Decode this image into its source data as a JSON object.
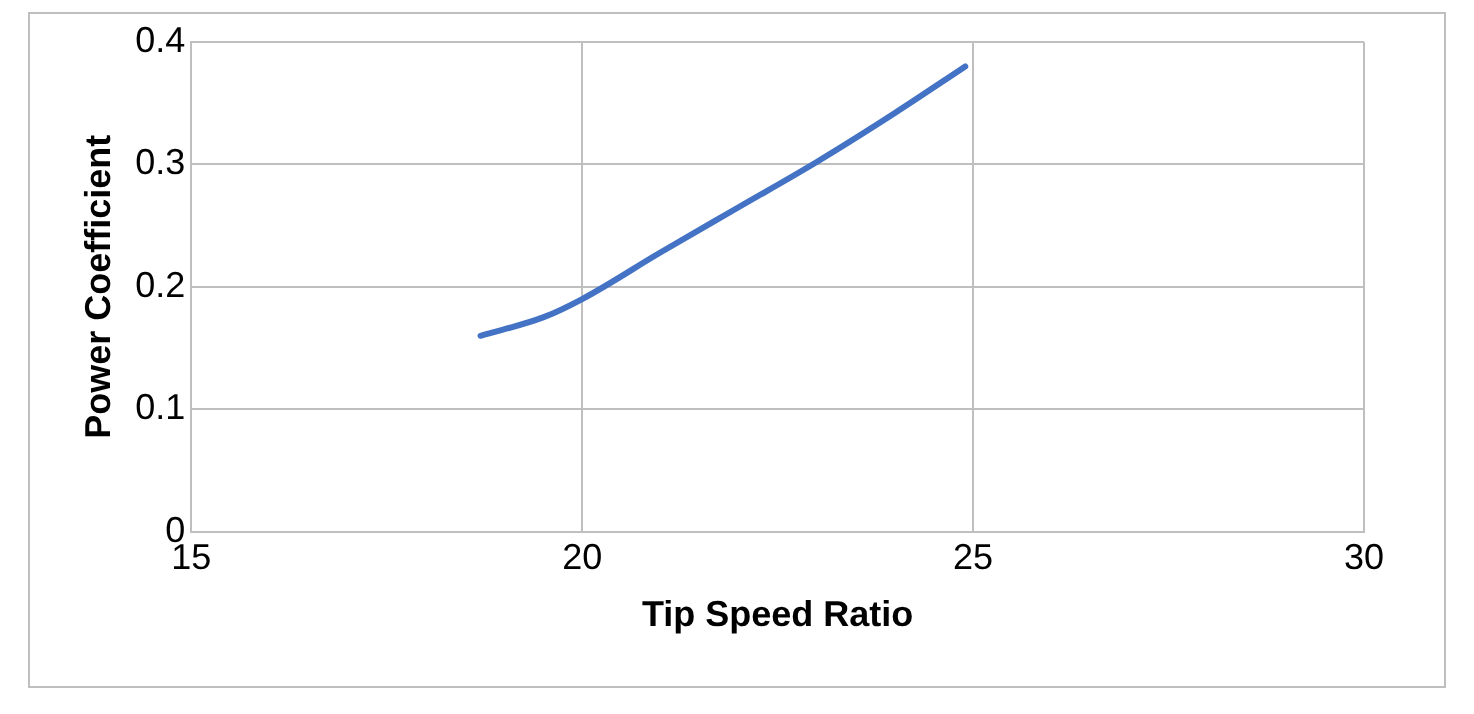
{
  "chart_data": {
    "type": "line",
    "xlabel": "Tip Speed Ratio",
    "ylabel": "Power Coefficient",
    "x": [
      18.7,
      19.5,
      20,
      21,
      22,
      23,
      24,
      24.9
    ],
    "series": [
      {
        "color": "#4472c4",
        "values": [
          0.16,
          0.175,
          0.19,
          0.228,
          0.265,
          0.302,
          0.342,
          0.38
        ]
      }
    ],
    "xlim": [
      15,
      30
    ],
    "xticks": [
      15,
      20,
      25,
      30
    ],
    "ylim": [
      0,
      0.4
    ],
    "yticks": [
      0,
      0.1,
      0.2,
      0.3,
      0.4
    ],
    "grid": true,
    "legend": false,
    "marker": "none",
    "line_style": "solid"
  }
}
